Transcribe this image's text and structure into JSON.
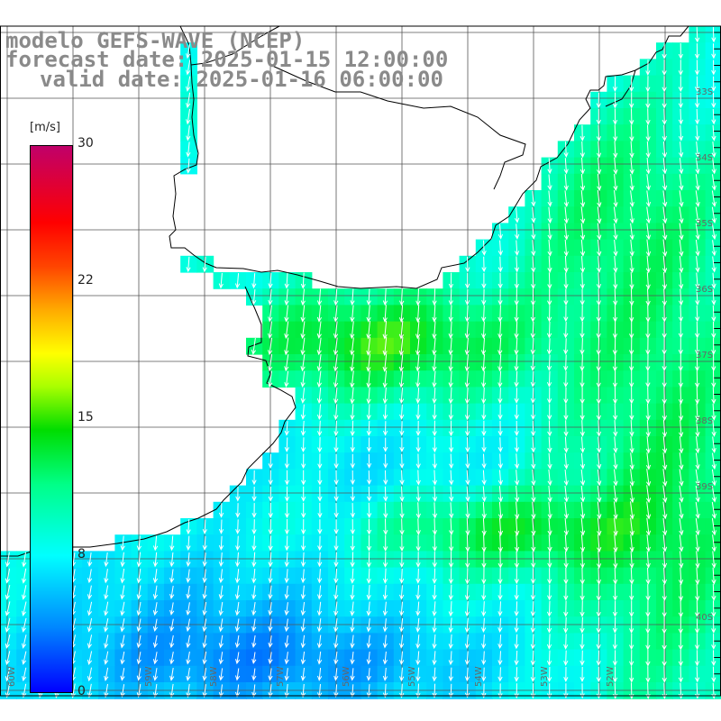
{
  "header": {
    "line1": "modelo GEFS-WAVE (NCEP)",
    "line2": "forecast date: 2025-01-15 12:00:00",
    "line3": "valid date: 2025-01-16 06:00:00"
  },
  "colorbar": {
    "unit": "[m/s]",
    "ticks": [
      "30",
      "22",
      "15",
      "8",
      "0"
    ],
    "colors": [
      "#0000ff",
      "#0088ff",
      "#00ffff",
      "#00ff88",
      "#00dd00",
      "#aaff00",
      "#ffff00",
      "#ffaa00",
      "#ff4400",
      "#ff0000",
      "#c0006a"
    ]
  },
  "axes": {
    "lat_labels": [
      "33S",
      "34S",
      "35S",
      "36S",
      "37S",
      "38S",
      "39S",
      "40S"
    ],
    "lon_labels": [
      "60W",
      "59W",
      "58W",
      "57W",
      "56W",
      "55W",
      "54W",
      "53W",
      "52W"
    ]
  },
  "colors": {
    "land": "#ffffff",
    "grid": "#555555",
    "coast": "#000000",
    "arrow": "#ffffff"
  }
}
